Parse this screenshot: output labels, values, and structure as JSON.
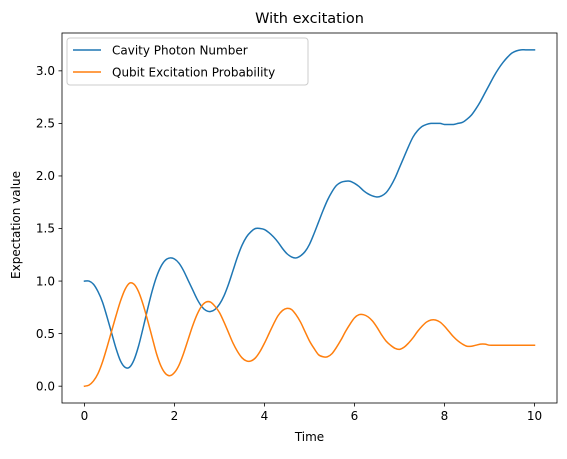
{
  "chart_data": {
    "type": "line",
    "title": "With excitation",
    "xlabel": "Time",
    "ylabel": "Expectation value",
    "xlim": [
      -0.5,
      10.5
    ],
    "ylim": [
      -0.16,
      3.36
    ],
    "xticks": [
      0,
      2,
      4,
      6,
      8,
      10
    ],
    "xtick_labels": [
      "0",
      "2",
      "4",
      "6",
      "8",
      "10"
    ],
    "yticks": [
      0.0,
      0.5,
      1.0,
      1.5,
      2.0,
      2.5,
      3.0
    ],
    "ytick_labels": [
      "0.0",
      "0.5",
      "1.0",
      "1.5",
      "2.0",
      "2.5",
      "3.0"
    ],
    "grid": false,
    "legend_position": "top-left",
    "series": [
      {
        "name": "Cavity Photon Number",
        "color": "#1f77b4",
        "x": [
          0.0,
          0.1,
          0.2,
          0.3,
          0.4,
          0.5,
          0.6,
          0.7,
          0.8,
          0.9,
          1.0,
          1.1,
          1.2,
          1.3,
          1.4,
          1.5,
          1.6,
          1.7,
          1.8,
          1.9,
          2.0,
          2.1,
          2.2,
          2.3,
          2.4,
          2.5,
          2.6,
          2.7,
          2.8,
          2.9,
          3.0,
          3.1,
          3.2,
          3.3,
          3.4,
          3.5,
          3.6,
          3.7,
          3.8,
          3.9,
          4.0,
          4.1,
          4.2,
          4.3,
          4.4,
          4.5,
          4.6,
          4.7,
          4.8,
          4.9,
          5.0,
          5.1,
          5.2,
          5.3,
          5.4,
          5.5,
          5.6,
          5.7,
          5.8,
          5.9,
          6.0,
          6.1,
          6.2,
          6.3,
          6.4,
          6.5,
          6.6,
          6.7,
          6.8,
          6.9,
          7.0,
          7.1,
          7.2,
          7.3,
          7.4,
          7.5,
          7.6,
          7.7,
          7.8,
          7.9,
          8.0,
          8.1,
          8.2,
          8.3,
          8.4,
          8.5,
          8.6,
          8.7,
          8.8,
          8.9,
          9.0,
          9.1,
          9.2,
          9.3,
          9.4,
          9.5,
          9.6,
          9.7,
          9.8,
          9.9,
          10.0
        ],
        "values": [
          1.0,
          1.0,
          0.97,
          0.9,
          0.8,
          0.66,
          0.51,
          0.36,
          0.24,
          0.18,
          0.18,
          0.25,
          0.38,
          0.55,
          0.73,
          0.9,
          1.04,
          1.14,
          1.2,
          1.22,
          1.21,
          1.17,
          1.1,
          1.01,
          0.92,
          0.83,
          0.76,
          0.72,
          0.71,
          0.73,
          0.78,
          0.86,
          0.97,
          1.1,
          1.23,
          1.34,
          1.42,
          1.47,
          1.5,
          1.5,
          1.49,
          1.46,
          1.42,
          1.37,
          1.31,
          1.26,
          1.23,
          1.22,
          1.24,
          1.28,
          1.35,
          1.45,
          1.56,
          1.67,
          1.77,
          1.85,
          1.91,
          1.94,
          1.95,
          1.95,
          1.93,
          1.9,
          1.86,
          1.83,
          1.81,
          1.8,
          1.81,
          1.84,
          1.9,
          1.98,
          2.08,
          2.18,
          2.28,
          2.37,
          2.43,
          2.47,
          2.49,
          2.5,
          2.5,
          2.5,
          2.49,
          2.49,
          2.49,
          2.5,
          2.51,
          2.54,
          2.58,
          2.64,
          2.71,
          2.79,
          2.87,
          2.95,
          3.02,
          3.08,
          3.13,
          3.17,
          3.19,
          3.2,
          3.2,
          3.2,
          3.2
        ]
      },
      {
        "name": "Qubit Excitation Probability",
        "color": "#ff7f0e",
        "x": [
          0.0,
          0.1,
          0.2,
          0.3,
          0.4,
          0.5,
          0.6,
          0.7,
          0.8,
          0.9,
          1.0,
          1.1,
          1.2,
          1.3,
          1.4,
          1.5,
          1.6,
          1.7,
          1.8,
          1.9,
          2.0,
          2.1,
          2.2,
          2.3,
          2.4,
          2.5,
          2.6,
          2.7,
          2.8,
          2.9,
          3.0,
          3.1,
          3.2,
          3.3,
          3.4,
          3.5,
          3.6,
          3.7,
          3.8,
          3.9,
          4.0,
          4.1,
          4.2,
          4.3,
          4.4,
          4.5,
          4.6,
          4.7,
          4.8,
          4.9,
          5.0,
          5.1,
          5.2,
          5.3,
          5.4,
          5.5,
          5.6,
          5.7,
          5.8,
          5.9,
          6.0,
          6.1,
          6.2,
          6.3,
          6.4,
          6.5,
          6.6,
          6.7,
          6.8,
          6.9,
          7.0,
          7.1,
          7.2,
          7.3,
          7.4,
          7.5,
          7.6,
          7.7,
          7.8,
          7.9,
          8.0,
          8.1,
          8.2,
          8.3,
          8.4,
          8.5,
          8.6,
          8.7,
          8.8,
          8.9,
          9.0,
          9.1,
          9.2,
          9.3,
          9.4,
          9.5,
          9.6,
          9.7,
          9.8,
          9.9,
          10.0
        ],
        "values": [
          0.0,
          0.01,
          0.05,
          0.12,
          0.23,
          0.37,
          0.52,
          0.67,
          0.81,
          0.92,
          0.98,
          0.97,
          0.9,
          0.78,
          0.63,
          0.47,
          0.31,
          0.19,
          0.12,
          0.1,
          0.13,
          0.2,
          0.31,
          0.44,
          0.57,
          0.68,
          0.76,
          0.8,
          0.8,
          0.76,
          0.7,
          0.61,
          0.51,
          0.41,
          0.33,
          0.27,
          0.24,
          0.24,
          0.27,
          0.33,
          0.41,
          0.5,
          0.59,
          0.67,
          0.72,
          0.74,
          0.73,
          0.68,
          0.61,
          0.52,
          0.43,
          0.36,
          0.3,
          0.28,
          0.28,
          0.31,
          0.37,
          0.44,
          0.52,
          0.59,
          0.65,
          0.68,
          0.68,
          0.66,
          0.62,
          0.56,
          0.49,
          0.43,
          0.39,
          0.36,
          0.35,
          0.37,
          0.41,
          0.46,
          0.52,
          0.57,
          0.61,
          0.63,
          0.63,
          0.61,
          0.57,
          0.52,
          0.47,
          0.43,
          0.4,
          0.38,
          0.38,
          0.39,
          0.4,
          0.4,
          0.39,
          0.39,
          0.39,
          0.39,
          0.39,
          0.39,
          0.39,
          0.39,
          0.39,
          0.39,
          0.39
        ]
      }
    ]
  }
}
